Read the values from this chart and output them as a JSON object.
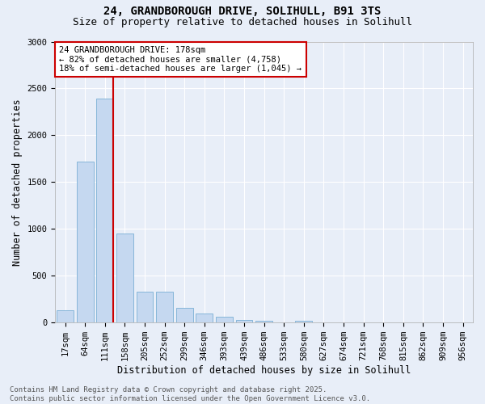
{
  "title_line1": "24, GRANDBOROUGH DRIVE, SOLIHULL, B91 3TS",
  "title_line2": "Size of property relative to detached houses in Solihull",
  "xlabel": "Distribution of detached houses by size in Solihull",
  "ylabel": "Number of detached properties",
  "annotation_title": "24 GRANDBOROUGH DRIVE: 178sqm",
  "annotation_line2": "← 82% of detached houses are smaller (4,758)",
  "annotation_line3": "18% of semi-detached houses are larger (1,045) →",
  "footer_line1": "Contains HM Land Registry data © Crown copyright and database right 2025.",
  "footer_line2": "Contains public sector information licensed under the Open Government Licence v3.0.",
  "categories": [
    "17sqm",
    "64sqm",
    "111sqm",
    "158sqm",
    "205sqm",
    "252sqm",
    "299sqm",
    "346sqm",
    "393sqm",
    "439sqm",
    "486sqm",
    "533sqm",
    "580sqm",
    "627sqm",
    "674sqm",
    "721sqm",
    "768sqm",
    "815sqm",
    "862sqm",
    "909sqm",
    "956sqm"
  ],
  "values": [
    130,
    1720,
    2390,
    950,
    330,
    330,
    155,
    100,
    65,
    30,
    15,
    5,
    20,
    0,
    0,
    0,
    0,
    0,
    0,
    0,
    0
  ],
  "bar_color": "#c5d8f0",
  "bar_edge_color": "#7bafd4",
  "vline_color": "#cc0000",
  "annotation_box_edge_color": "#cc0000",
  "background_color": "#e8eef8",
  "plot_bg_color": "#e8eef8",
  "ylim": [
    0,
    3000
  ],
  "yticks": [
    0,
    500,
    1000,
    1500,
    2000,
    2500,
    3000
  ],
  "grid_color": "#ffffff",
  "title_fontsize": 10,
  "subtitle_fontsize": 9,
  "axis_label_fontsize": 8.5,
  "tick_fontsize": 7.5,
  "annotation_fontsize": 7.5,
  "footer_fontsize": 6.5
}
